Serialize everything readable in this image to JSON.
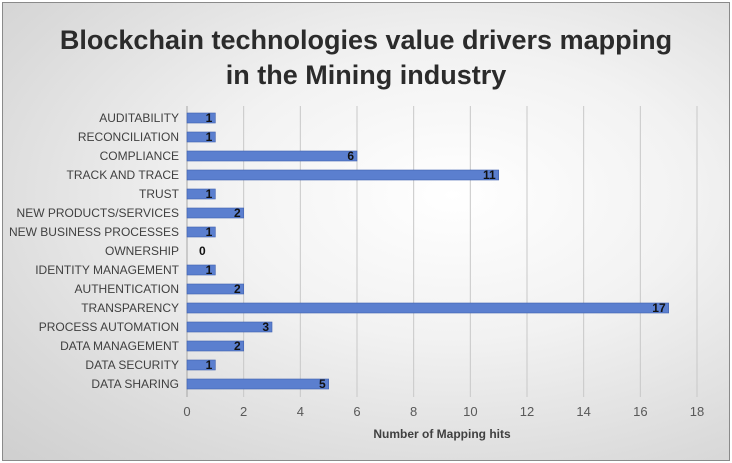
{
  "chart_data": {
    "type": "bar",
    "orientation": "horizontal",
    "title_lines": [
      "Blockchain technologies value drivers mapping",
      "in the Mining industry"
    ],
    "xlabel": "Number of Mapping hits",
    "ylabel": "",
    "xlim": [
      0,
      18
    ],
    "x_ticks": [
      "0",
      "2",
      "4",
      "6",
      "8",
      "10",
      "12",
      "14",
      "16",
      "18"
    ],
    "gridlines": true,
    "legend": "none",
    "categories": [
      "AUDITABILITY",
      "RECONCILIATION",
      "COMPLIANCE",
      "TRACK AND TRACE",
      "TRUST",
      "NEW PRODUCTS/SERVICES",
      "NEW BUSINESS PROCESSES",
      "OWNERSHIP",
      "IDENTITY MANAGEMENT",
      "AUTHENTICATION",
      "TRANSPARENCY",
      "PROCESS AUTOMATION",
      "DATA MANAGEMENT",
      "DATA SECURITY",
      "DATA SHARING"
    ],
    "values": [
      1,
      1,
      6,
      11,
      1,
      2,
      1,
      0,
      1,
      2,
      17,
      3,
      2,
      1,
      5
    ],
    "bar_color": "#5b7fcf",
    "bar_edge_color": "#3f5fae",
    "label_color": "#111111"
  }
}
